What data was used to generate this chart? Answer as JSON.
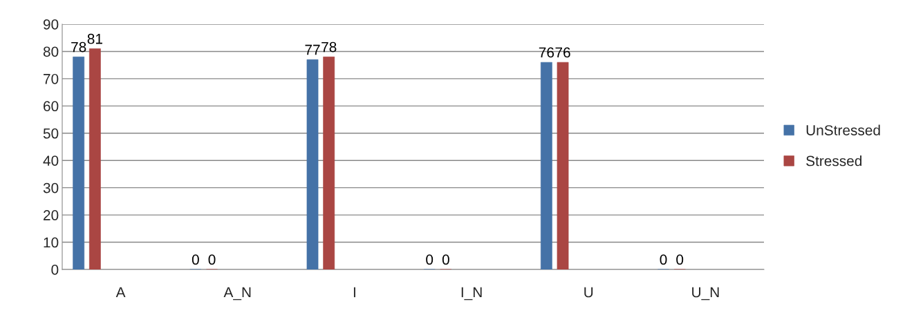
{
  "chart_data": {
    "type": "bar",
    "categories": [
      "A",
      "A_N",
      "I",
      "I_N",
      "U",
      "U_N"
    ],
    "series": [
      {
        "name": "UnStressed",
        "color": "#4572a7",
        "values": [
          78,
          0,
          77,
          0,
          76,
          0
        ]
      },
      {
        "name": "Stressed",
        "color": "#aa4643",
        "values": [
          81,
          0,
          78,
          0,
          76,
          0
        ]
      }
    ],
    "ylim": [
      0,
      90
    ],
    "yticks": [
      0,
      10,
      20,
      30,
      40,
      50,
      60,
      70,
      80,
      90
    ],
    "grid": "y",
    "legend": "right",
    "data_labels": true
  }
}
